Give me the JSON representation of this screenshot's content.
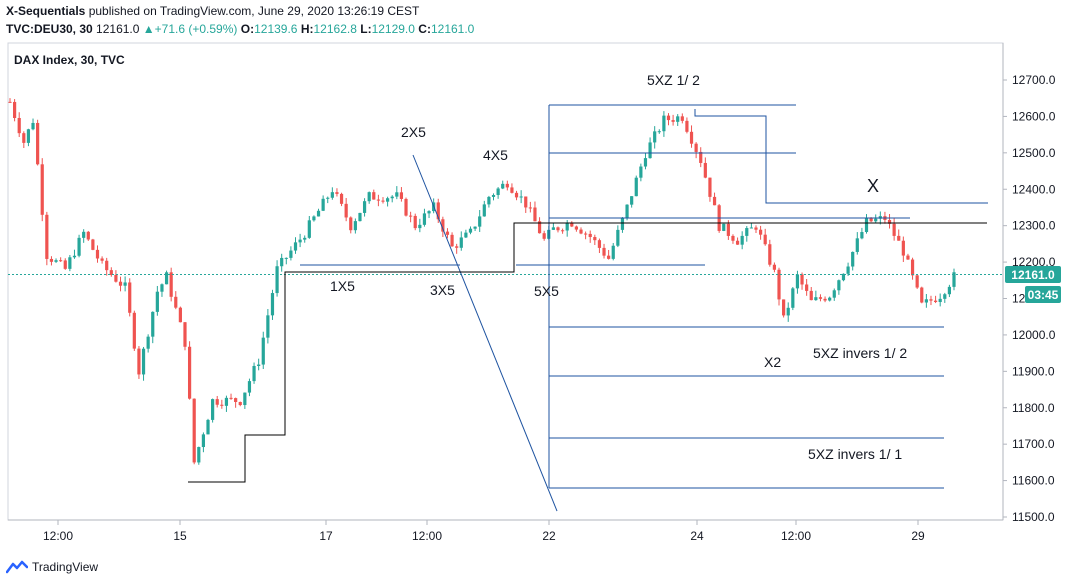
{
  "header": {
    "author": "X-Sequentials",
    "published_text": "published on TradingView.com, June 29, 2020 13:26:19 CEST",
    "symbol": "TVC:DEU30, 30",
    "last": "12161.0",
    "change_arrow": "▲",
    "change": "+71.6 (+0.59%)",
    "o_label": "O:",
    "o_value": "12139.6",
    "h_label": "H:",
    "h_value": "12162.8",
    "l_label": "L:",
    "l_value": "12129.0",
    "c_label": "C:",
    "c_value": "12161.0"
  },
  "footer": {
    "brand": "TradingView"
  },
  "colors": {
    "up": "#26a69a",
    "down": "#ef5350",
    "drawing": "#1e53a0",
    "black": "#000000",
    "price_label_bg": "#26a69a"
  },
  "chart_data": {
    "type": "candlestick",
    "title": "DAX Index, 30, TVC",
    "ylim": [
      11480,
      12760
    ],
    "y_ticks": [
      "12700.0",
      "12600.0",
      "12500.0",
      "12400.0",
      "12300.0",
      "12200.0",
      "12100.0",
      "12000.0",
      "11900.0",
      "11800.0",
      "11700.0",
      "11600.0",
      "11500.0"
    ],
    "x_ticks": [
      "12:00",
      "15",
      "17",
      "12:00",
      "22",
      "24",
      "12:00",
      "29"
    ],
    "last_price_label": "12161.0",
    "countdown_label": "03:45",
    "annotations": [
      "2X5",
      "4X5",
      "1X5",
      "3X5",
      "5X5",
      "5XZ 1/ 2",
      "X",
      "X2",
      "5XZ invers 1/ 2",
      "5XZ invers 1/ 1"
    ],
    "waypoints": [
      {
        "t": 0,
        "p": 12640
      },
      {
        "t": 3,
        "p": 12530
      },
      {
        "t": 5,
        "p": 12590
      },
      {
        "t": 8,
        "p": 12220
      },
      {
        "t": 12,
        "p": 12180
      },
      {
        "t": 16,
        "p": 12280
      },
      {
        "t": 20,
        "p": 12190
      },
      {
        "t": 25,
        "p": 12130
      },
      {
        "t": 28,
        "p": 11900
      },
      {
        "t": 32,
        "p": 12120
      },
      {
        "t": 34,
        "p": 12160
      },
      {
        "t": 38,
        "p": 11980
      },
      {
        "t": 40,
        "p": 11650
      },
      {
        "t": 44,
        "p": 11820
      },
      {
        "t": 50,
        "p": 11820
      },
      {
        "t": 54,
        "p": 11930
      },
      {
        "t": 58,
        "p": 12180
      },
      {
        "t": 64,
        "p": 12280
      },
      {
        "t": 70,
        "p": 12400
      },
      {
        "t": 74,
        "p": 12300
      },
      {
        "t": 78,
        "p": 12380
      },
      {
        "t": 84,
        "p": 12380
      },
      {
        "t": 88,
        "p": 12300
      },
      {
        "t": 92,
        "p": 12350
      },
      {
        "t": 96,
        "p": 12240
      },
      {
        "t": 100,
        "p": 12280
      },
      {
        "t": 104,
        "p": 12380
      },
      {
        "t": 108,
        "p": 12420
      },
      {
        "t": 112,
        "p": 12360
      },
      {
        "t": 116,
        "p": 12260
      },
      {
        "t": 118,
        "p": 12290
      },
      {
        "t": 122,
        "p": 12310
      },
      {
        "t": 126,
        "p": 12270
      },
      {
        "t": 130,
        "p": 12210
      },
      {
        "t": 134,
        "p": 12350
      },
      {
        "t": 138,
        "p": 12500
      },
      {
        "t": 142,
        "p": 12590
      },
      {
        "t": 146,
        "p": 12600
      },
      {
        "t": 150,
        "p": 12480
      },
      {
        "t": 154,
        "p": 12300
      },
      {
        "t": 158,
        "p": 12260
      },
      {
        "t": 162,
        "p": 12300
      },
      {
        "t": 166,
        "p": 12170
      },
      {
        "t": 168,
        "p": 12040
      },
      {
        "t": 171,
        "p": 12160
      },
      {
        "t": 174,
        "p": 12090
      },
      {
        "t": 178,
        "p": 12110
      },
      {
        "t": 182,
        "p": 12200
      },
      {
        "t": 186,
        "p": 12310
      },
      {
        "t": 190,
        "p": 12320
      },
      {
        "t": 194,
        "p": 12230
      },
      {
        "t": 198,
        "p": 12080
      },
      {
        "t": 202,
        "p": 12110
      },
      {
        "t": 205,
        "p": 12160
      }
    ]
  }
}
